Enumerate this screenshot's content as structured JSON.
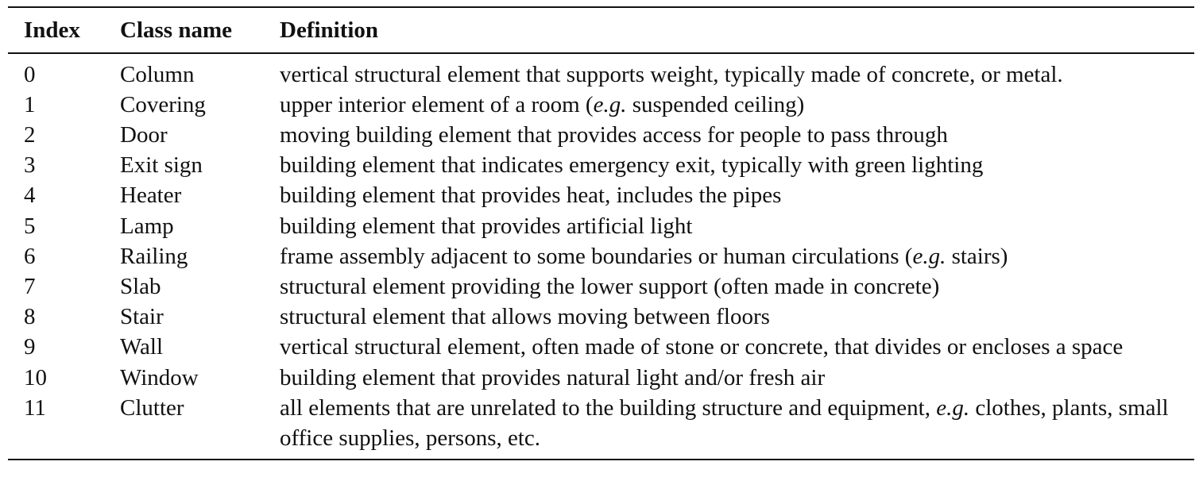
{
  "table": {
    "headers": {
      "index": "Index",
      "class_name": "Class name",
      "definition": "Definition"
    },
    "rows": [
      {
        "index": "0",
        "class_name": "Column",
        "definition": [
          {
            "text": "vertical structural element that supports weight, typically made of concrete, or metal."
          }
        ]
      },
      {
        "index": "1",
        "class_name": "Covering",
        "definition": [
          {
            "text": "upper interior element of a room ("
          },
          {
            "text": "e.g.",
            "italic": true
          },
          {
            "text": " suspended ceiling)"
          }
        ]
      },
      {
        "index": "2",
        "class_name": "Door",
        "definition": [
          {
            "text": "moving building element that provides access for people to pass through"
          }
        ]
      },
      {
        "index": "3",
        "class_name": "Exit sign",
        "definition": [
          {
            "text": "building element that indicates emergency exit, typically with green lighting"
          }
        ]
      },
      {
        "index": "4",
        "class_name": "Heater",
        "definition": [
          {
            "text": "building element that provides heat, includes the pipes"
          }
        ]
      },
      {
        "index": "5",
        "class_name": "Lamp",
        "definition": [
          {
            "text": "building element that provides artificial light"
          }
        ]
      },
      {
        "index": "6",
        "class_name": "Railing",
        "definition": [
          {
            "text": "frame assembly adjacent to some boundaries or human circulations ("
          },
          {
            "text": "e.g.",
            "italic": true
          },
          {
            "text": " stairs)"
          }
        ]
      },
      {
        "index": "7",
        "class_name": "Slab",
        "definition": [
          {
            "text": "structural element providing the lower support (often made in concrete)"
          }
        ]
      },
      {
        "index": "8",
        "class_name": "Stair",
        "definition": [
          {
            "text": "structural element that allows moving between floors"
          }
        ]
      },
      {
        "index": "9",
        "class_name": "Wall",
        "definition": [
          {
            "text": "vertical structural element, often made of stone or concrete, that divides or encloses a space"
          }
        ]
      },
      {
        "index": "10",
        "class_name": "Window",
        "definition": [
          {
            "text": "building element that provides natural light and/or fresh air"
          }
        ]
      },
      {
        "index": "11",
        "class_name": "Clutter",
        "definition": [
          {
            "text": "all elements that are unrelated to the building structure and equipment, "
          },
          {
            "text": "e.g.",
            "italic": true
          },
          {
            "text": " clothes, plants, small office supplies, persons, etc."
          }
        ]
      }
    ]
  }
}
